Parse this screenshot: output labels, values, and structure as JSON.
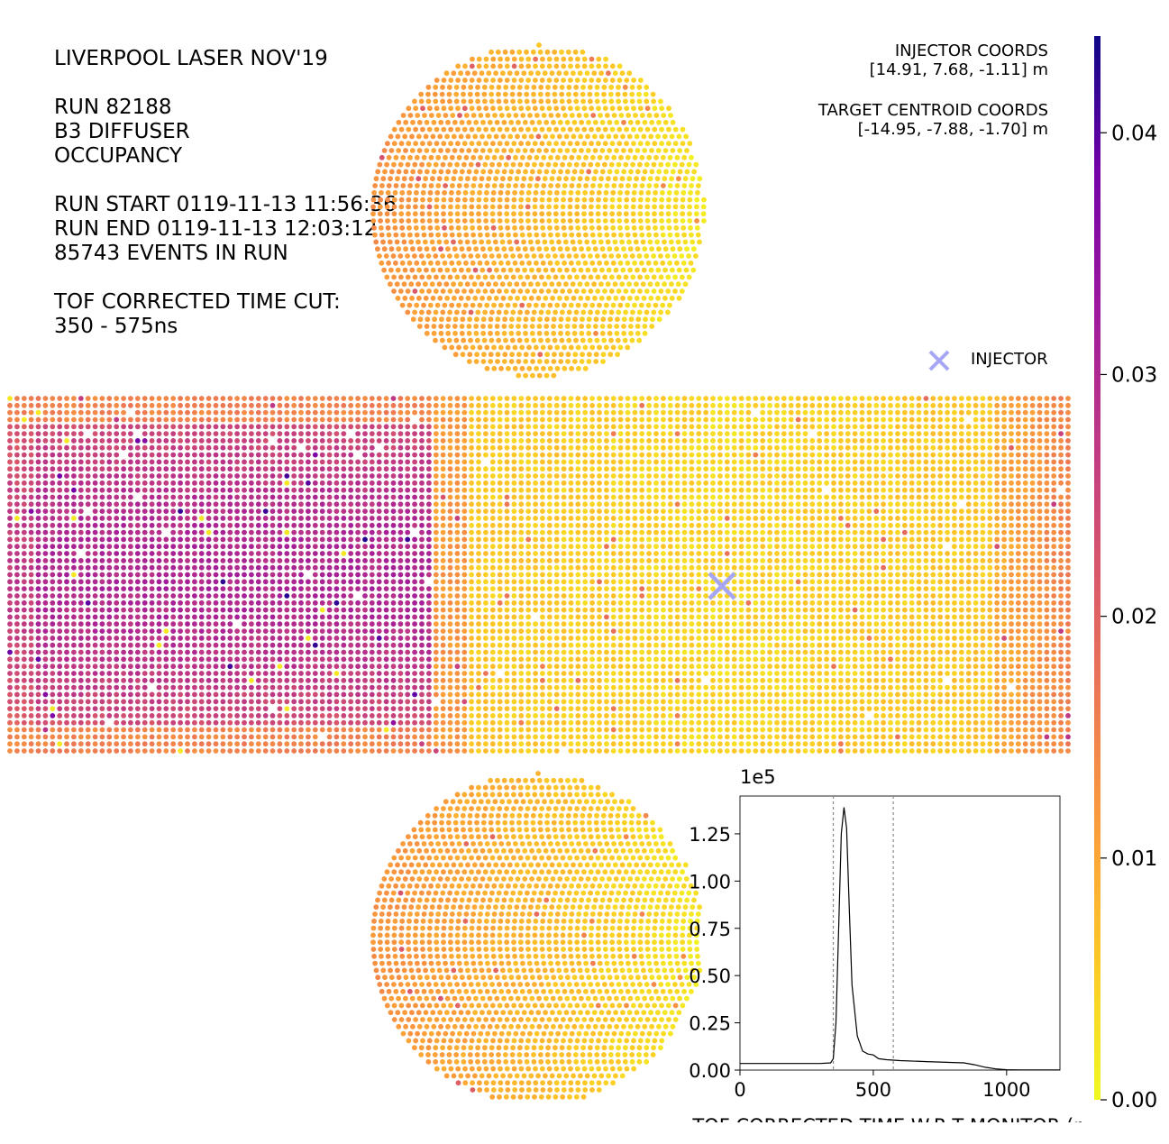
{
  "info_lines": [
    "LIVERPOOL LASER NOV'19",
    "",
    "RUN 82188",
    "B3 DIFFUSER",
    "OCCUPANCY",
    "",
    "RUN START 0119-11-13 11:56:36",
    "RUN END 0119-11-13 12:03:12",
    "85743 EVENTS IN RUN",
    "",
    "TOF CORRECTED TIME CUT:",
    "350 - 575ns"
  ],
  "coords": {
    "injector_label": "INJECTOR COORDS",
    "injector_value": "[14.91, 7.68, -1.11] m",
    "target_label": "TARGET CENTROID COORDS",
    "target_value": "[-14.95, -7.88, -1.70] m"
  },
  "legend": {
    "label": "INJECTOR",
    "marker_color": "#a6a6f5"
  },
  "colorbar": {
    "cmap": "plasma_r",
    "min": 0.0,
    "max": 0.044,
    "ticks": [
      0.0,
      0.01,
      0.02,
      0.03,
      0.04
    ],
    "tick_labels": [
      "0.00",
      "0.01",
      "0.02",
      "0.03",
      "0.04"
    ]
  },
  "occupancy_map": {
    "barrel_columns": 150,
    "barrel_rows": 51,
    "cap_diameter_pmts": 47,
    "injector_marker": "x"
  },
  "chart_data": {
    "type": "line",
    "title": "",
    "xlabel": "TOF CORRECTED TIME W.R.T MONITOR (ns)",
    "ylabel": "",
    "y_scale_label": "1e5",
    "xlim": [
      0,
      1200
    ],
    "ylim": [
      0,
      1.45
    ],
    "xticks": [
      0,
      500,
      1000
    ],
    "xtick_labels": [
      "0",
      "500",
      "1000"
    ],
    "yticks": [
      0,
      0.25,
      0.5,
      0.75,
      1.0,
      1.25
    ],
    "ytick_labels": [
      "0.00",
      "0.25",
      "0.50",
      "0.75",
      "1.00",
      "1.25"
    ],
    "cut_lines": [
      350,
      575
    ],
    "series": [
      {
        "x": [
          0,
          100,
          200,
          300,
          340,
          350,
          360,
          370,
          380,
          390,
          400,
          410,
          420,
          440,
          460,
          480,
          500,
          520,
          550,
          600,
          700,
          800,
          840,
          880,
          920,
          960,
          1000,
          1050,
          1100,
          1200
        ],
        "y": [
          0.035,
          0.035,
          0.035,
          0.035,
          0.038,
          0.06,
          0.25,
          0.75,
          1.25,
          1.39,
          1.28,
          0.85,
          0.45,
          0.18,
          0.1,
          0.085,
          0.08,
          0.06,
          0.055,
          0.05,
          0.045,
          0.04,
          0.038,
          0.028,
          0.015,
          0.006,
          0.002,
          0.001,
          0.001,
          0.001
        ]
      }
    ]
  }
}
